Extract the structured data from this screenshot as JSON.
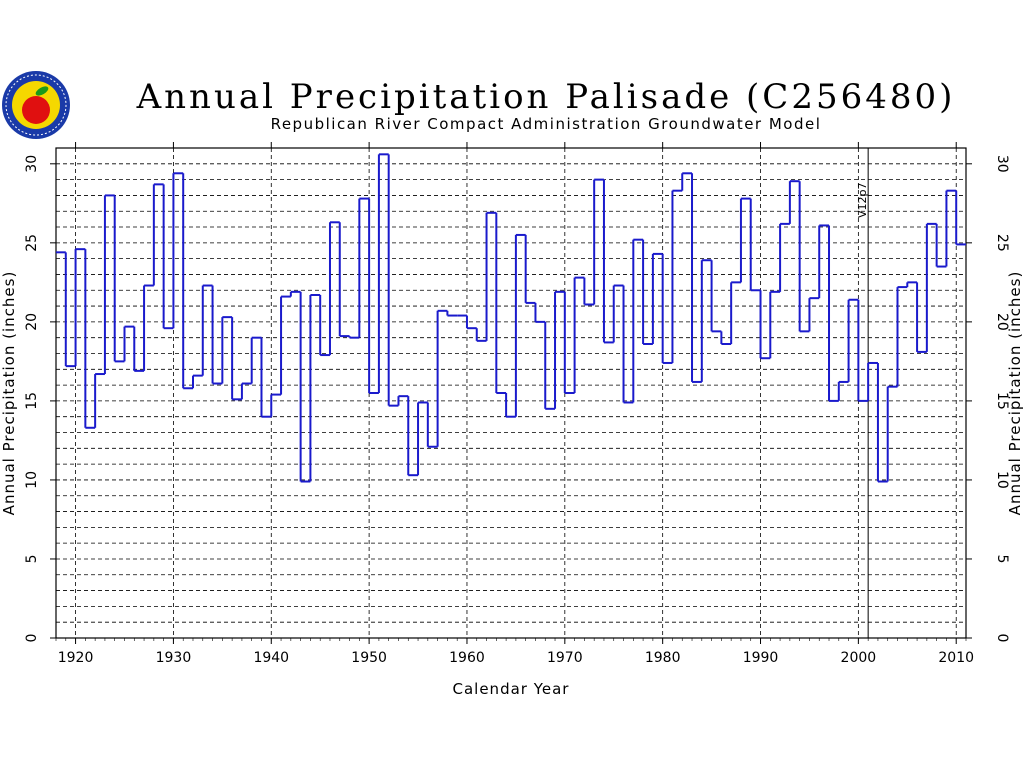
{
  "logo": {
    "icon": "apple-seal-logo",
    "colors": {
      "ring": "#1a3aa8",
      "fill": "#f5d800",
      "apple": "#e01010",
      "leaf": "#1a9a1a"
    }
  },
  "chart_data": {
    "type": "line",
    "style": "step",
    "title": "Annual Precipitation Palisade (C256480)",
    "subtitle": "Republican River Compact Administration Groundwater Model",
    "xlabel": "Calendar Year",
    "ylabel": "Annual Precipitation (inches)",
    "ylabel_right": "Annual Precipitation (inches)",
    "xlim": [
      1918,
      2011
    ],
    "ylim": [
      0,
      31
    ],
    "xticks": [
      "1920",
      "1930",
      "1940",
      "1950",
      "1960",
      "1970",
      "1980",
      "1990",
      "2000",
      "2010"
    ],
    "yticks": [
      "0",
      "5",
      "10",
      "15",
      "20",
      "25",
      "30"
    ],
    "grid": true,
    "series_color": "#1a1acc",
    "annotation": {
      "text": "V12p7",
      "x": 2001
    },
    "x": [
      1918,
      1919,
      1920,
      1921,
      1922,
      1923,
      1924,
      1925,
      1926,
      1927,
      1928,
      1929,
      1930,
      1931,
      1932,
      1933,
      1934,
      1935,
      1936,
      1937,
      1938,
      1939,
      1940,
      1941,
      1942,
      1943,
      1944,
      1945,
      1946,
      1947,
      1948,
      1949,
      1950,
      1951,
      1952,
      1953,
      1954,
      1955,
      1956,
      1957,
      1958,
      1959,
      1960,
      1961,
      1962,
      1963,
      1964,
      1965,
      1966,
      1967,
      1968,
      1969,
      1970,
      1971,
      1972,
      1973,
      1974,
      1975,
      1976,
      1977,
      1978,
      1979,
      1980,
      1981,
      1982,
      1983,
      1984,
      1985,
      1986,
      1987,
      1988,
      1989,
      1990,
      1991,
      1992,
      1993,
      1994,
      1995,
      1996,
      1997,
      1998,
      1999,
      2000,
      2001,
      2002,
      2003,
      2004,
      2005,
      2006,
      2007,
      2008,
      2009,
      2010
    ],
    "values": [
      24.4,
      17.2,
      24.6,
      13.3,
      16.7,
      28.0,
      17.5,
      19.7,
      16.9,
      22.3,
      28.7,
      19.6,
      29.4,
      15.8,
      16.6,
      22.3,
      16.1,
      20.3,
      15.1,
      16.1,
      19.0,
      14.0,
      15.4,
      21.6,
      21.9,
      9.9,
      21.7,
      17.9,
      26.3,
      19.1,
      19.0,
      27.8,
      15.5,
      30.6,
      14.7,
      15.3,
      10.3,
      14.9,
      12.1,
      20.7,
      20.4,
      20.4,
      19.6,
      18.8,
      26.9,
      15.5,
      14.0,
      25.5,
      21.2,
      20.0,
      14.5,
      21.9,
      15.5,
      22.8,
      21.1,
      29.0,
      18.7,
      22.3,
      14.9,
      25.2,
      18.6,
      24.3,
      17.4,
      28.3,
      29.4,
      16.2,
      23.9,
      19.4,
      18.6,
      22.5,
      27.8,
      22.0,
      17.7,
      21.9,
      26.2,
      28.9,
      19.4,
      21.5,
      26.1,
      15.0,
      16.2,
      21.4,
      15.0,
      17.4,
      9.9,
      15.9,
      22.2,
      22.5,
      18.1,
      26.2,
      23.5,
      28.3,
      24.9
    ]
  }
}
